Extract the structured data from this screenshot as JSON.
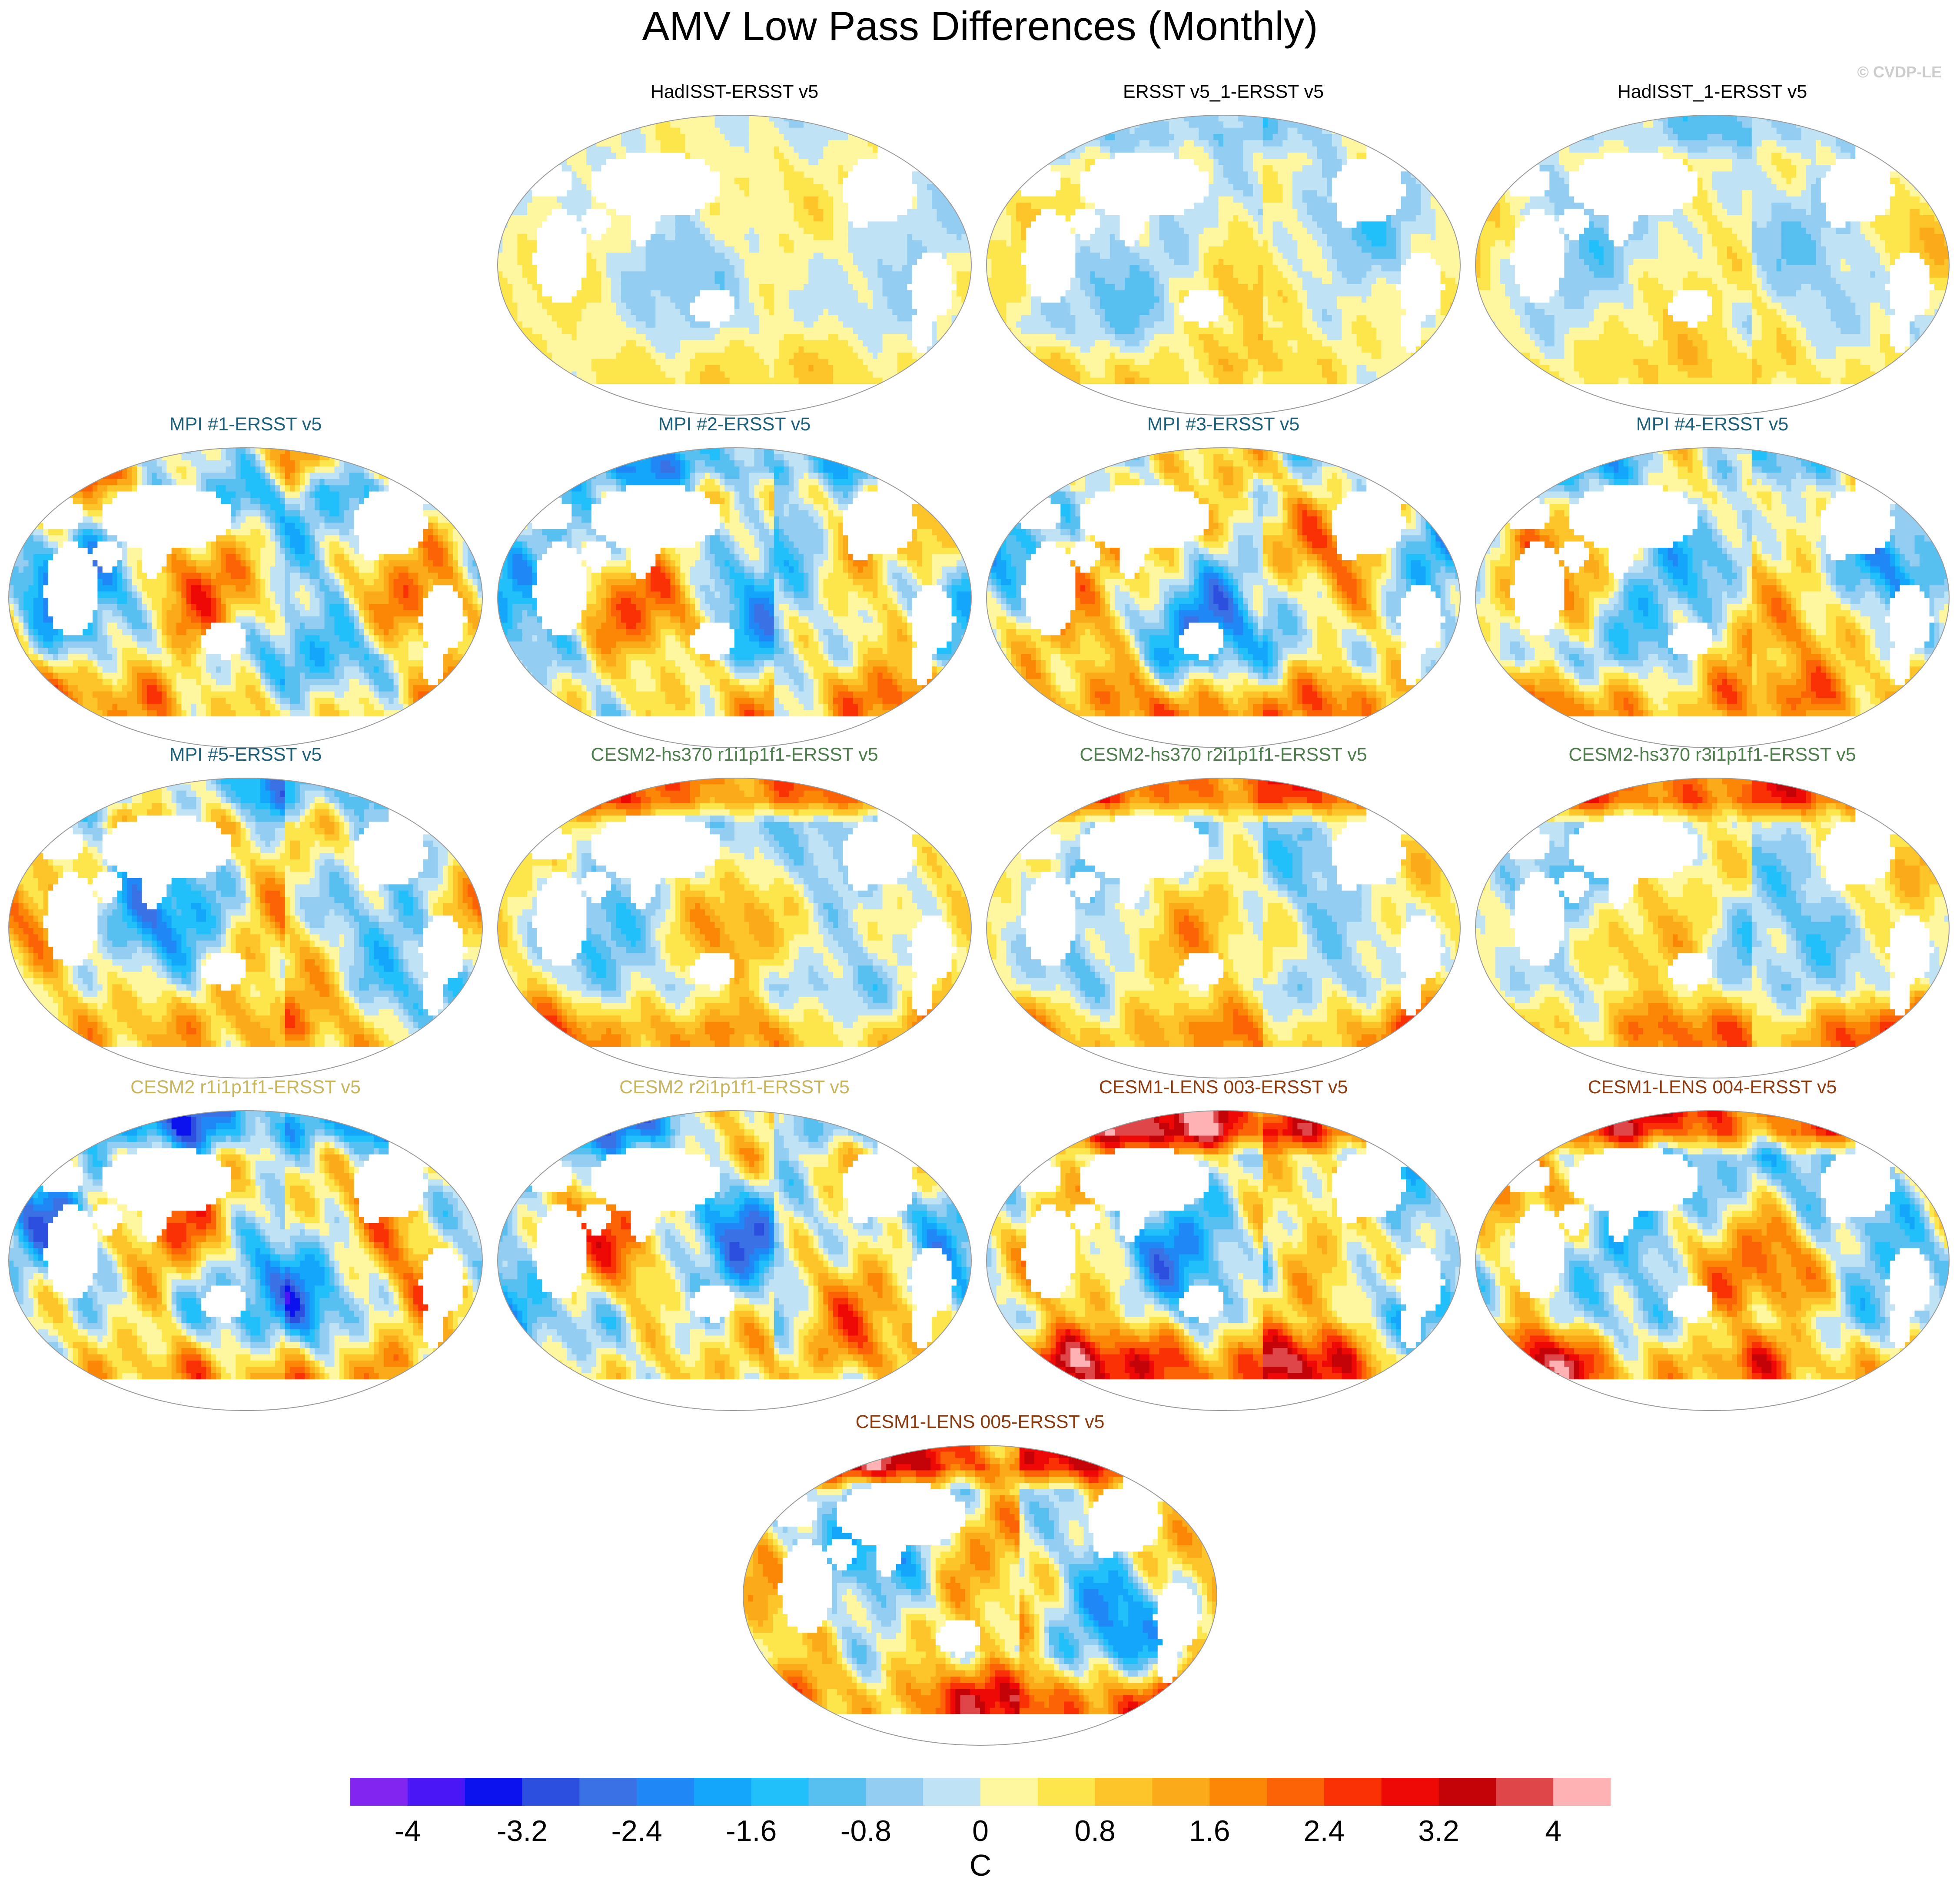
{
  "figure": {
    "title": "AMV Low Pass Differences (Monthly)",
    "watermark": "© CVDP-LE"
  },
  "chart_data": {
    "type": "heatmap",
    "description_units": "C",
    "panels": [
      {
        "label": "HadISST-ERSST v5",
        "group": "obs",
        "title_color": "#000000",
        "pattern": {
          "amp": 0.8,
          "seed": 1,
          "sst": 0.6,
          "ao": 0.1
        }
      },
      {
        "label": "ERSST v5_1-ERSST v5",
        "group": "obs",
        "title_color": "#000000",
        "pattern": {
          "amp": 1.2,
          "seed": 2,
          "sst": 1.0,
          "ao": -0.6
        }
      },
      {
        "label": "HadISST_1-ERSST v5",
        "group": "obs",
        "title_color": "#000000",
        "pattern": {
          "amp": 1.1,
          "seed": 3,
          "sst": 0.8,
          "ao": -0.8
        }
      },
      {
        "label": "MPI #1-ERSST v5",
        "group": "MPI",
        "title_color": "#1b5f7a",
        "pattern": {
          "amp": 2.6,
          "seed": 4,
          "sst": 1.8,
          "ao": 0.8
        }
      },
      {
        "label": "MPI #2-ERSST v5",
        "group": "MPI",
        "title_color": "#1b5f7a",
        "pattern": {
          "amp": 2.4,
          "seed": 5,
          "sst": 1.4,
          "ao": -1.2
        }
      },
      {
        "label": "MPI #3-ERSST v5",
        "group": "MPI",
        "title_color": "#1b5f7a",
        "pattern": {
          "amp": 2.6,
          "seed": 6,
          "sst": 1.6,
          "ao": 0.8
        }
      },
      {
        "label": "MPI #4-ERSST v5",
        "group": "MPI",
        "title_color": "#1b5f7a",
        "pattern": {
          "amp": 2.2,
          "seed": 7,
          "sst": 2.0,
          "ao": -0.8
        }
      },
      {
        "label": "MPI #5-ERSST v5",
        "group": "MPI",
        "title_color": "#1b5f7a",
        "pattern": {
          "amp": 2.2,
          "seed": 8,
          "sst": 1.2,
          "ao": -1.2
        }
      },
      {
        "label": "CESM2-hs370 r1i1p1f1-ERSST v5",
        "group": "CESM2-hs370",
        "title_color": "#4d7d4b",
        "pattern": {
          "amp": 1.6,
          "seed": 9,
          "sst": 2.4,
          "ao": 2.2
        }
      },
      {
        "label": "CESM2-hs370 r2i1p1f1-ERSST v5",
        "group": "CESM2-hs370",
        "title_color": "#4d7d4b",
        "pattern": {
          "amp": 1.6,
          "seed": 9.5,
          "sst": 2.4,
          "ao": 2.2
        }
      },
      {
        "label": "CESM2-hs370 r3i1p1f1-ERSST v5",
        "group": "CESM2-hs370",
        "title_color": "#4d7d4b",
        "pattern": {
          "amp": 1.6,
          "seed": 10,
          "sst": 2.4,
          "ao": 2.2
        }
      },
      {
        "label": "CESM2 r1i1p1f1-ERSST v5",
        "group": "CESM2",
        "title_color": "#c8b560",
        "pattern": {
          "amp": 2.8,
          "seed": 11,
          "sst": 1.2,
          "ao": -1.0
        }
      },
      {
        "label": "CESM2 r2i1p1f1-ERSST v5",
        "group": "CESM2",
        "title_color": "#c8b560",
        "pattern": {
          "amp": 2.6,
          "seed": 12,
          "sst": 0.8,
          "ao": -1.0
        }
      },
      {
        "label": "CESM1-LENS 003-ERSST v5",
        "group": "CESM1-LENS",
        "title_color": "#8b3a10",
        "pattern": {
          "amp": 2.4,
          "seed": 13,
          "sst": 3.2,
          "ao": 2.8
        }
      },
      {
        "label": "CESM1-LENS 004-ERSST v5",
        "group": "CESM1-LENS",
        "title_color": "#8b3a10",
        "pattern": {
          "amp": 2.4,
          "seed": 14,
          "sst": 3.2,
          "ao": 2.4
        }
      },
      {
        "label": "CESM1-LENS 005-ERSST v5",
        "group": "CESM1-LENS",
        "title_color": "#8b3a10",
        "pattern": {
          "amp": 2.4,
          "seed": 15,
          "sst": 3.2,
          "ao": 2.8
        }
      }
    ],
    "colorbar": {
      "unit_label": "C",
      "levels": [
        -4.4,
        -4.0,
        -3.6,
        -3.2,
        -2.8,
        -2.4,
        -2.0,
        -1.6,
        -1.2,
        -0.8,
        -0.4,
        0.0,
        0.4,
        0.8,
        1.2,
        1.6,
        2.0,
        2.4,
        2.8,
        3.2,
        3.6,
        4.0,
        4.4
      ],
      "tick_labels": [
        "-4",
        "-3.2",
        "-2.4",
        "-1.6",
        "-0.8",
        "0",
        "0.8",
        "1.6",
        "2.4",
        "3.2",
        "4"
      ],
      "tick_values": [
        -4.0,
        -3.2,
        -2.4,
        -1.6,
        -0.8,
        0.0,
        0.8,
        1.6,
        2.4,
        3.2,
        4.0
      ],
      "colors": [
        "#8225f0",
        "#4a16f6",
        "#0c12ee",
        "#2c4fe0",
        "#3a72e6",
        "#2088f6",
        "#14a6fa",
        "#22c0fb",
        "#58bff1",
        "#93cdf1",
        "#bfe3f5",
        "#fff7a0",
        "#fde64c",
        "#fdc52a",
        "#fbab19",
        "#fc8707",
        "#fc6206",
        "#fa3104",
        "#ee0806",
        "#c40308",
        "#df4649",
        "#feb2b4"
      ]
    }
  }
}
